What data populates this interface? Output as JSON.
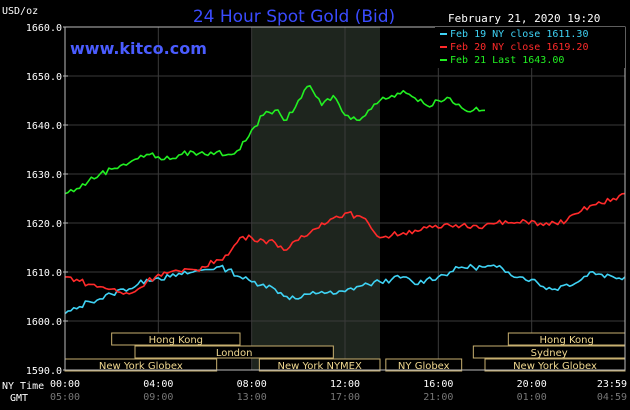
{
  "header": {
    "usd_label": "USD/oz",
    "title": "24 Hour Spot Gold (Bid)",
    "date": "February 21, 2020 19:20",
    "site": "www.kitco.com"
  },
  "legend": [
    {
      "label": "Feb 19 NY close 1611.30",
      "color": "#3fd3f5"
    },
    {
      "label": "Feb 20 NY close 1619.20",
      "color": "#ff2a2a"
    },
    {
      "label": "Feb 21 Last 1643.00",
      "color": "#22f022"
    }
  ],
  "row_labels": {
    "ny": "NY Time",
    "gmt": "GMT"
  },
  "x_ticks": [
    {
      "h": 0,
      "ny": "00:00",
      "gmt": "05:00"
    },
    {
      "h": 4,
      "ny": "04:00",
      "gmt": "09:00"
    },
    {
      "h": 8,
      "ny": "08:00",
      "gmt": "13:00"
    },
    {
      "h": 12,
      "ny": "12:00",
      "gmt": "17:00"
    },
    {
      "h": 16,
      "ny": "16:00",
      "gmt": "21:00"
    },
    {
      "h": 20,
      "ny": "20:00",
      "gmt": "01:00"
    },
    {
      "h": 24,
      "ny": "23:59",
      "gmt": "04:59"
    }
  ],
  "sessions": [
    {
      "label": "Hong Kong",
      "start": 2.0,
      "end": 7.5,
      "row": 0
    },
    {
      "label": "Hong Kong",
      "start": 19.0,
      "end": 24.0,
      "row": 0
    },
    {
      "label": "London",
      "start": 3.0,
      "end": 11.5,
      "row": 1
    },
    {
      "label": "Sydney",
      "start": 17.5,
      "end": 24.0,
      "row": 1
    },
    {
      "label": "New York Globex",
      "start": 0.0,
      "end": 6.5,
      "row": 2
    },
    {
      "label": "New York NYMEX",
      "start": 8.33,
      "end": 13.5,
      "row": 2
    },
    {
      "label": "NY Globex",
      "start": 13.75,
      "end": 17.0,
      "row": 2
    },
    {
      "label": "New York Globex",
      "start": 18.0,
      "end": 24.0,
      "row": 2
    }
  ],
  "chart_data": {
    "type": "line",
    "title": "24 Hour Spot Gold (Bid)",
    "ylabel": "USD/oz",
    "xlabel": "",
    "ylim": [
      1590,
      1660
    ],
    "y_ticks": [
      "1590.0",
      "1600.0",
      "1610.0",
      "1620.0",
      "1630.0",
      "1640.0",
      "1650.0",
      "1660.0"
    ],
    "xlim_hours": [
      0,
      24
    ],
    "grid": true,
    "legend_position": "top-right",
    "highlight_hours": [
      8,
      13.5
    ],
    "series": [
      {
        "name": "Feb 19 NY close 1611.30",
        "color": "#3fd3f5",
        "points": [
          [
            0,
            1601.5
          ],
          [
            0.5,
            1602.5
          ],
          [
            1,
            1604
          ],
          [
            1.5,
            1604.5
          ],
          [
            2,
            1605.5
          ],
          [
            2.5,
            1606.5
          ],
          [
            3,
            1607
          ],
          [
            3.5,
            1608.5
          ],
          [
            4,
            1608.8
          ],
          [
            4.5,
            1609
          ],
          [
            5,
            1609.5
          ],
          [
            5.5,
            1610
          ],
          [
            6,
            1610.5
          ],
          [
            6.5,
            1611
          ],
          [
            7,
            1610.5
          ],
          [
            7.5,
            1609
          ],
          [
            8,
            1608
          ],
          [
            8.5,
            1607.5
          ],
          [
            9,
            1606.5
          ],
          [
            9.5,
            1605
          ],
          [
            10,
            1604.5
          ],
          [
            10.5,
            1605.5
          ],
          [
            11,
            1606
          ],
          [
            11.5,
            1605.5
          ],
          [
            12,
            1606
          ],
          [
            12.5,
            1607
          ],
          [
            13,
            1607.5
          ],
          [
            13.5,
            1608
          ],
          [
            14,
            1608.5
          ],
          [
            14.5,
            1609
          ],
          [
            15,
            1607.5
          ],
          [
            15.5,
            1608.5
          ],
          [
            16,
            1609
          ],
          [
            16.5,
            1610
          ],
          [
            17,
            1611
          ],
          [
            17.5,
            1611
          ],
          [
            18,
            1611
          ],
          [
            18.5,
            1611
          ],
          [
            19,
            1610
          ],
          [
            19.5,
            1609
          ],
          [
            20,
            1608.5
          ],
          [
            20.5,
            1607
          ],
          [
            21,
            1606.5
          ],
          [
            21.5,
            1607.5
          ],
          [
            22,
            1608
          ],
          [
            22.5,
            1610
          ],
          [
            23,
            1609.5
          ],
          [
            23.5,
            1609
          ],
          [
            24,
            1609
          ]
        ]
      },
      {
        "name": "Feb 20 NY close 1619.20",
        "color": "#ff2a2a",
        "points": [
          [
            0,
            1609
          ],
          [
            0.5,
            1608.5
          ],
          [
            1,
            1607.5
          ],
          [
            1.5,
            1607
          ],
          [
            2,
            1606.5
          ],
          [
            2.5,
            1605.5
          ],
          [
            3,
            1606
          ],
          [
            3.5,
            1608
          ],
          [
            4,
            1609.5
          ],
          [
            4.5,
            1610
          ],
          [
            5,
            1610
          ],
          [
            5.5,
            1610.5
          ],
          [
            6,
            1611
          ],
          [
            6.5,
            1612.5
          ],
          [
            7,
            1613.5
          ],
          [
            7.5,
            1617
          ],
          [
            8,
            1617
          ],
          [
            8.5,
            1616.5
          ],
          [
            9,
            1616
          ],
          [
            9.5,
            1614.5
          ],
          [
            10,
            1616.5
          ],
          [
            10.5,
            1618
          ],
          [
            11,
            1620
          ],
          [
            11.5,
            1621
          ],
          [
            12,
            1622
          ],
          [
            12.5,
            1621.5
          ],
          [
            13,
            1620
          ],
          [
            13.5,
            1617
          ],
          [
            14,
            1617.5
          ],
          [
            14.5,
            1618
          ],
          [
            15,
            1618.5
          ],
          [
            15.5,
            1619
          ],
          [
            16,
            1619
          ],
          [
            16.5,
            1619.5
          ],
          [
            17,
            1619.5
          ],
          [
            17.5,
            1619.5
          ],
          [
            18,
            1619.5
          ],
          [
            18.5,
            1620
          ],
          [
            19,
            1620
          ],
          [
            19.5,
            1620
          ],
          [
            20,
            1620.5
          ],
          [
            20.5,
            1619.5
          ],
          [
            21,
            1620
          ],
          [
            21.5,
            1620.5
          ],
          [
            22,
            1622
          ],
          [
            22.5,
            1623.5
          ],
          [
            23,
            1624
          ],
          [
            23.5,
            1625
          ],
          [
            24,
            1626
          ]
        ]
      },
      {
        "name": "Feb 21 Last 1643.00",
        "color": "#22f022",
        "points": [
          [
            0,
            1626
          ],
          [
            0.5,
            1627
          ],
          [
            1,
            1628.5
          ],
          [
            1.5,
            1630
          ],
          [
            2,
            1631
          ],
          [
            2.5,
            1632
          ],
          [
            3,
            1633
          ],
          [
            3.5,
            1634
          ],
          [
            4,
            1633.5
          ],
          [
            4.5,
            1633
          ],
          [
            5,
            1634
          ],
          [
            5.5,
            1634.5
          ],
          [
            6,
            1634
          ],
          [
            6.5,
            1634.5
          ],
          [
            7,
            1634
          ],
          [
            7.5,
            1635
          ],
          [
            8,
            1639
          ],
          [
            8.5,
            1642
          ],
          [
            9,
            1643
          ],
          [
            9.5,
            1641
          ],
          [
            10,
            1645
          ],
          [
            10.5,
            1648
          ],
          [
            11,
            1644
          ],
          [
            11.5,
            1646
          ],
          [
            12,
            1642
          ],
          [
            12.5,
            1641
          ],
          [
            13,
            1643
          ],
          [
            13.5,
            1645
          ],
          [
            14,
            1646
          ],
          [
            14.5,
            1647
          ],
          [
            15,
            1645.5
          ],
          [
            15.5,
            1644
          ],
          [
            16,
            1645
          ],
          [
            16.5,
            1645.5
          ],
          [
            17,
            1643.5
          ],
          [
            17.5,
            1643
          ],
          [
            18,
            1643
          ]
        ]
      }
    ]
  }
}
